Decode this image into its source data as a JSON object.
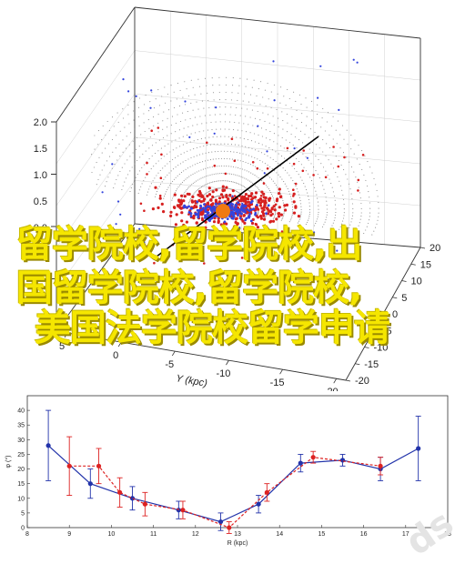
{
  "banner": {
    "line1": "留学院校,留学院校,出",
    "line2": "国留学院校,留学院校,",
    "line3": "美国法学院校留学申请",
    "color": "#f5e600"
  },
  "chart_data": [
    {
      "type": "scatter",
      "panel": "top",
      "title": "",
      "zlabel": "",
      "xlabel": "",
      "ylabel": "Y (kpc)",
      "z_ticks": [
        "0.0",
        "0.5",
        "1.0",
        "1.5",
        "2.0"
      ],
      "y_ticks": [
        "5",
        "0",
        "-5",
        "-10",
        "-15",
        "-20"
      ],
      "x_ticks": [
        "20",
        "15",
        "10",
        "5",
        "0",
        "-5",
        "-10",
        "-15",
        "-20"
      ],
      "series": [
        {
          "color": "#d62020"
        },
        {
          "color": "#3344dd"
        },
        {
          "color": "#f07a10"
        }
      ]
    },
    {
      "type": "line",
      "panel": "bottom",
      "title": "",
      "xlabel": "R (kpc)",
      "ylabel": "φ (°)",
      "xlim": [
        8,
        18
      ],
      "ylim": [
        0,
        45
      ],
      "x_ticks": [
        "8",
        "9",
        "10",
        "11",
        "12",
        "13",
        "14",
        "15",
        "16",
        "17",
        "18"
      ],
      "y_ticks": [
        "0",
        "5",
        "10",
        "15",
        "20",
        "25",
        "30",
        "35",
        "40"
      ],
      "series": [
        {
          "color": "#2233aa",
          "x": [
            8.5,
            9.5,
            10.5,
            11.6,
            12.6,
            13.5,
            14.5,
            15.5,
            16.4,
            17.3
          ],
          "y": [
            28,
            15,
            10,
            6,
            2,
            8,
            22,
            23,
            20,
            27
          ],
          "err": [
            12,
            5,
            4,
            3,
            3,
            3,
            3,
            2,
            4,
            11
          ]
        },
        {
          "color": "#dd2222",
          "x": [
            9.0,
            9.7,
            10.2,
            10.8,
            11.7,
            12.8,
            13.7,
            14.8,
            16.4
          ],
          "y": [
            21,
            21,
            12,
            8,
            6,
            0,
            12,
            24,
            21
          ],
          "err": [
            10,
            6,
            5,
            4,
            3,
            2,
            3,
            2,
            3
          ]
        }
      ]
    }
  ]
}
